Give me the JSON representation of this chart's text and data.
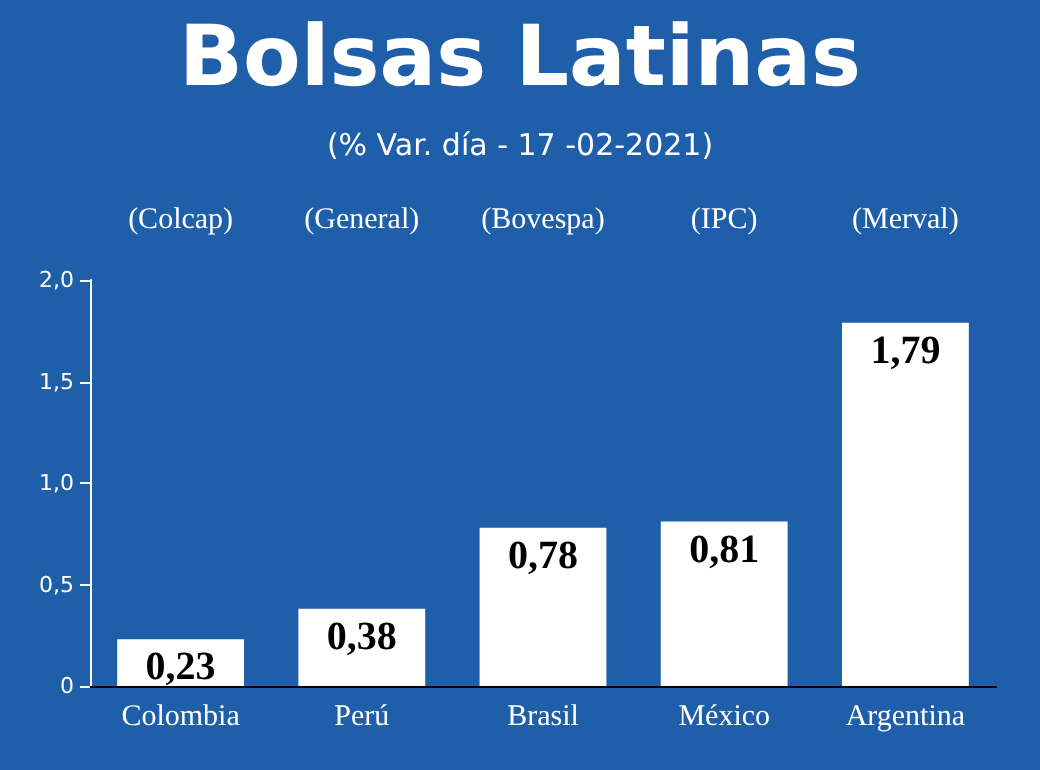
{
  "chart_data": {
    "type": "bar",
    "title": "Bolsas Latinas",
    "subtitle": "(% Var. día - 17 -02-2021)",
    "categories": [
      "Colombia",
      "Perú",
      "Brasil",
      "México",
      "Argentina"
    ],
    "values": [
      0.23,
      0.38,
      0.78,
      0.81,
      1.79
    ],
    "value_labels": [
      "0,23",
      "0,38",
      "0,78",
      "0,81",
      "1,79"
    ],
    "color": "#ffffff",
    "ylim": [
      0,
      2
    ],
    "yticks": [
      0,
      {
        "value": 0.5,
        "label": "0,5"
      },
      {
        "value": 1,
        "label": "1,0"
      },
      {
        "value": 1.5,
        "label": "1,5"
      },
      {
        "value": 2,
        "label": "2,0"
      }
    ],
    "annotations": [
      "(Colcap)",
      "(General)",
      "(Bovespa)",
      "(IPC)",
      "(Merval)"
    ],
    "grid": false
  }
}
